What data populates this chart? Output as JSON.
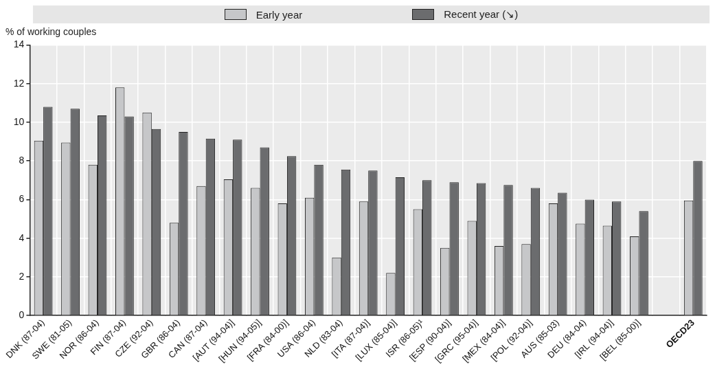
{
  "chart_data": {
    "type": "bar",
    "ylabel": "% of working couples",
    "categories": [
      "DNK (87-04)",
      "SWE (81-05)",
      "NOR (86-04)",
      "FIN (87-04)",
      "CZE (92-04)",
      "GBR (86-04)",
      "CAN (87-04)",
      "[AUT (94-04)]",
      "[HUN (94-05)]",
      "[FRA (84-00)]",
      "USA (86-04)",
      "NLD (83-04)",
      "[ITA (87-04)]",
      "[LUX (85-04)]",
      "ISR (86-05)¹",
      "[ESP (90-04)]",
      "[GRC (95-04)]",
      "[MEX (84-04)]",
      "[POL (92-04)]",
      "AUS (85-03)",
      "DEU (84-04)",
      "[IRL (94-04)]",
      "[BEL (85-00)]",
      null,
      "OECD23"
    ],
    "series": [
      {
        "name": "Early year",
        "color": "#c6c7c9",
        "values": [
          9.05,
          8.95,
          7.8,
          11.8,
          10.5,
          4.8,
          6.7,
          7.05,
          6.6,
          5.8,
          6.1,
          3.0,
          5.9,
          2.2,
          5.5,
          3.5,
          4.9,
          3.6,
          3.7,
          5.8,
          4.75,
          4.65,
          4.1,
          null,
          5.95
        ]
      },
      {
        "name": "Recent year (↘)",
        "color": "#6b6c6e",
        "values": [
          10.8,
          10.7,
          10.35,
          10.3,
          9.65,
          9.5,
          9.15,
          9.1,
          8.7,
          8.25,
          7.8,
          7.55,
          7.5,
          7.15,
          7.0,
          6.9,
          6.85,
          6.75,
          6.6,
          6.35,
          6.0,
          5.9,
          5.4,
          null,
          8.0
        ]
      }
    ],
    "ylim": [
      0,
      14
    ],
    "yticks": [
      0,
      2,
      4,
      6,
      8,
      10,
      12,
      14
    ],
    "grid": true,
    "legend": "top"
  }
}
